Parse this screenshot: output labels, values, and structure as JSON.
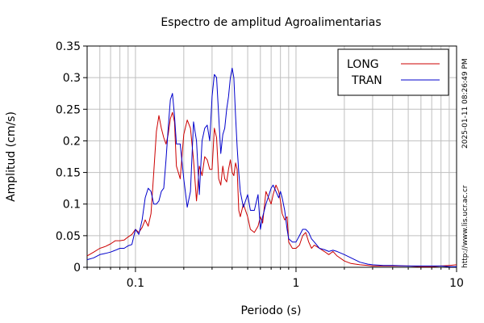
{
  "chart_data": {
    "type": "line",
    "title": "Espectro de amplitud Agroalimentarias",
    "xlabel": "Periodo (s)",
    "ylabel": "Amplitud (cm/s)",
    "xscale": "log",
    "xlim": [
      0.05,
      10
    ],
    "ylim": [
      0,
      0.35
    ],
    "xticks": [
      {
        "value": 0.1,
        "label": "0.1"
      },
      {
        "value": 1,
        "label": "1"
      },
      {
        "value": 10,
        "label": "10"
      }
    ],
    "yticks": [
      {
        "value": 0,
        "label": "0"
      },
      {
        "value": 0.05,
        "label": "0.05"
      },
      {
        "value": 0.1,
        "label": "0.1"
      },
      {
        "value": 0.15,
        "label": "0.15"
      },
      {
        "value": 0.2,
        "label": "0.2"
      },
      {
        "value": 0.25,
        "label": "0.25"
      },
      {
        "value": 0.3,
        "label": "0.3"
      },
      {
        "value": 0.35,
        "label": "0.35"
      }
    ],
    "grid": true,
    "legend_position": "top-right",
    "timestamp": "2025-01-11 08:26:49 PM",
    "source": "http://www.lis.ucr.ac.cr",
    "series": [
      {
        "name": "LONG",
        "color": "#cc0000",
        "x": [
          0.05,
          0.055,
          0.06,
          0.065,
          0.07,
          0.075,
          0.08,
          0.085,
          0.09,
          0.095,
          0.1,
          0.105,
          0.11,
          0.115,
          0.12,
          0.125,
          0.13,
          0.135,
          0.14,
          0.145,
          0.15,
          0.155,
          0.16,
          0.165,
          0.17,
          0.175,
          0.18,
          0.19,
          0.2,
          0.21,
          0.22,
          0.23,
          0.24,
          0.25,
          0.26,
          0.27,
          0.28,
          0.29,
          0.3,
          0.31,
          0.32,
          0.33,
          0.34,
          0.35,
          0.36,
          0.37,
          0.38,
          0.39,
          0.4,
          0.41,
          0.42,
          0.43,
          0.44,
          0.45,
          0.47,
          0.5,
          0.52,
          0.55,
          0.58,
          0.6,
          0.62,
          0.65,
          0.7,
          0.72,
          0.75,
          0.78,
          0.8,
          0.82,
          0.85,
          0.88,
          0.9,
          0.95,
          1.0,
          1.05,
          1.1,
          1.15,
          1.2,
          1.25,
          1.3,
          1.4,
          1.5,
          1.6,
          1.7,
          1.8,
          2.0,
          2.2,
          2.5,
          2.8,
          3.0,
          3.5,
          4,
          5,
          6,
          7,
          8,
          9,
          10
        ],
        "y": [
          0.018,
          0.024,
          0.03,
          0.033,
          0.037,
          0.042,
          0.042,
          0.043,
          0.048,
          0.052,
          0.06,
          0.055,
          0.063,
          0.075,
          0.065,
          0.085,
          0.15,
          0.215,
          0.24,
          0.22,
          0.205,
          0.195,
          0.21,
          0.235,
          0.245,
          0.23,
          0.16,
          0.14,
          0.21,
          0.233,
          0.22,
          0.17,
          0.105,
          0.16,
          0.145,
          0.175,
          0.17,
          0.155,
          0.155,
          0.22,
          0.205,
          0.14,
          0.13,
          0.16,
          0.14,
          0.135,
          0.155,
          0.17,
          0.15,
          0.145,
          0.165,
          0.155,
          0.09,
          0.08,
          0.1,
          0.08,
          0.06,
          0.055,
          0.065,
          0.08,
          0.07,
          0.12,
          0.1,
          0.115,
          0.13,
          0.12,
          0.105,
          0.085,
          0.075,
          0.08,
          0.04,
          0.03,
          0.03,
          0.035,
          0.05,
          0.055,
          0.04,
          0.03,
          0.035,
          0.03,
          0.025,
          0.02,
          0.025,
          0.018,
          0.01,
          0.006,
          0.004,
          0.003,
          0.002,
          0.002,
          0.002,
          0.002,
          0.001,
          0.001,
          0.002,
          0.003,
          0.004
        ]
      },
      {
        "name": "TRAN",
        "color": "#0000cc",
        "x": [
          0.05,
          0.055,
          0.06,
          0.065,
          0.07,
          0.075,
          0.08,
          0.085,
          0.09,
          0.095,
          0.1,
          0.105,
          0.11,
          0.115,
          0.12,
          0.125,
          0.13,
          0.135,
          0.14,
          0.145,
          0.15,
          0.155,
          0.16,
          0.165,
          0.17,
          0.175,
          0.18,
          0.19,
          0.2,
          0.21,
          0.22,
          0.23,
          0.24,
          0.25,
          0.26,
          0.27,
          0.28,
          0.29,
          0.3,
          0.31,
          0.32,
          0.33,
          0.34,
          0.35,
          0.36,
          0.37,
          0.38,
          0.39,
          0.4,
          0.41,
          0.42,
          0.43,
          0.44,
          0.45,
          0.47,
          0.5,
          0.52,
          0.55,
          0.58,
          0.6,
          0.62,
          0.65,
          0.7,
          0.72,
          0.75,
          0.78,
          0.8,
          0.82,
          0.85,
          0.88,
          0.9,
          0.95,
          1.0,
          1.05,
          1.1,
          1.15,
          1.2,
          1.25,
          1.3,
          1.4,
          1.5,
          1.6,
          1.7,
          1.8,
          2.0,
          2.2,
          2.5,
          2.8,
          3.0,
          3.5,
          4,
          5,
          6,
          7,
          8,
          9,
          10
        ],
        "y": [
          0.012,
          0.015,
          0.02,
          0.022,
          0.024,
          0.027,
          0.03,
          0.03,
          0.034,
          0.036,
          0.06,
          0.052,
          0.075,
          0.11,
          0.125,
          0.12,
          0.1,
          0.1,
          0.105,
          0.12,
          0.125,
          0.17,
          0.22,
          0.265,
          0.275,
          0.24,
          0.195,
          0.195,
          0.14,
          0.095,
          0.12,
          0.23,
          0.2,
          0.115,
          0.2,
          0.22,
          0.225,
          0.2,
          0.27,
          0.305,
          0.3,
          0.24,
          0.18,
          0.21,
          0.22,
          0.25,
          0.27,
          0.3,
          0.315,
          0.3,
          0.24,
          0.19,
          0.15,
          0.12,
          0.095,
          0.115,
          0.09,
          0.09,
          0.115,
          0.06,
          0.08,
          0.1,
          0.125,
          0.13,
          0.12,
          0.11,
          0.12,
          0.11,
          0.09,
          0.06,
          0.045,
          0.04,
          0.04,
          0.05,
          0.06,
          0.06,
          0.055,
          0.045,
          0.04,
          0.03,
          0.028,
          0.025,
          0.027,
          0.025,
          0.02,
          0.015,
          0.008,
          0.005,
          0.004,
          0.003,
          0.003,
          0.002,
          0.002,
          0.002,
          0.002,
          0.001,
          0.001
        ]
      }
    ]
  }
}
